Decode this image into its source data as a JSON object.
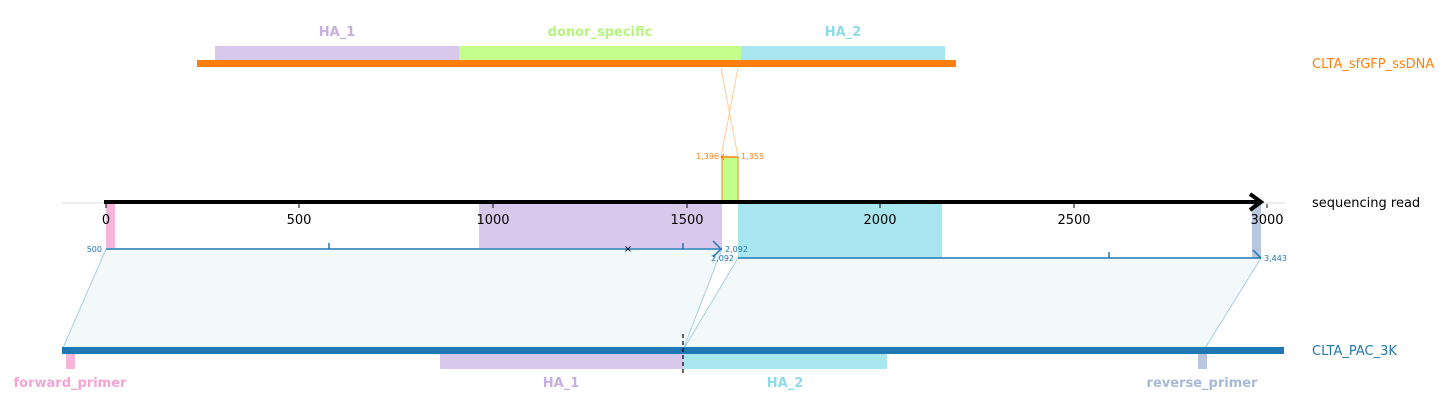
{
  "donor": {
    "name": "CLTA_sfGFP_ssDNA",
    "color": "#ff7f0e",
    "features": [
      {
        "label": "HA_1",
        "color": "#d8c8ec",
        "text_color": "#c5b0e0"
      },
      {
        "label": "donor_specific",
        "color": "#c3ff8a",
        "text_color": "#b5f57a"
      },
      {
        "label": "HA_2",
        "color": "#a8e6f0",
        "text_color": "#8ddbe8"
      }
    ],
    "junction_labels": [
      "1,396",
      "1,355"
    ]
  },
  "read": {
    "name": "sequencing read",
    "ticks": [
      "0",
      "500",
      "1000",
      "1500",
      "2000",
      "2500",
      "3000"
    ],
    "alignment_labels": {
      "seg1_start": "500",
      "seg1_end": "2,092",
      "seg2_start": "2,092",
      "seg2_end": "3,443"
    }
  },
  "reference": {
    "name": "CLTA_PAC_3K",
    "color": "#1f77b4",
    "features": [
      {
        "label": "forward_primer",
        "color": "#f6b6dc",
        "text_color": "#f3a6d4"
      },
      {
        "label": "HA_1",
        "color": "#d8c8ec",
        "text_color": "#c5b0e0"
      },
      {
        "label": "HA_2",
        "color": "#a8e6f0",
        "text_color": "#8ddbe8"
      },
      {
        "label": "reverse_primer",
        "color": "#b8c6e0",
        "text_color": "#a8b8d8"
      }
    ]
  }
}
